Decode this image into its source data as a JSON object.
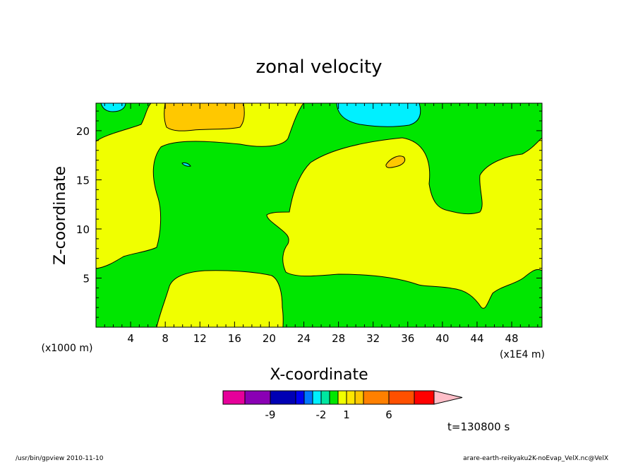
{
  "chart_data": {
    "type": "heatmap",
    "subtype": "filled-contour",
    "title": "zonal velocity",
    "xlabel": "X-coordinate",
    "ylabel": "Z-coordinate",
    "x_scale_note": "(x1E4 m)",
    "y_scale_note": "(x1000 m)",
    "xlim": [
      0,
      51.5
    ],
    "ylim": [
      0,
      22.8
    ],
    "x_ticks": [
      4,
      8,
      12,
      16,
      20,
      24,
      28,
      32,
      36,
      40,
      44,
      48
    ],
    "y_ticks": [
      5,
      10,
      15,
      20
    ],
    "regions": [
      {
        "level_color": "#00e600",
        "label": "background band"
      },
      {
        "level_color": "#f0ff00",
        "label": "upper-left positive region"
      },
      {
        "level_color": "#f0ff00",
        "label": "central positive region"
      },
      {
        "level_color": "#f0ff00",
        "label": "lower positive region"
      },
      {
        "level_color": "#ffc800",
        "label": "top positive maximum"
      },
      {
        "level_color": "#00f0ff",
        "label": "top negative minimum"
      },
      {
        "level_color": "#ffc800",
        "label": "small positive cell near x=34"
      }
    ],
    "colorbar": {
      "colors": [
        "#e6009a",
        "#8a00b4",
        "#0000b4",
        "#0000f0",
        "#0078ff",
        "#00f0ff",
        "#00e6a0",
        "#00e600",
        "#f0ff00",
        "#ffe600",
        "#ffc800",
        "#ff8000",
        "#ff5000",
        "#ff0000",
        "#ff7a7a",
        "#ffbec8"
      ],
      "tick_labels": [
        {
          "label": "-9",
          "index": 1
        },
        {
          "label": "-2",
          "index": 5
        },
        {
          "label": "1",
          "index": 8
        },
        {
          "label": "6",
          "index": 11
        }
      ]
    },
    "time_label": "t=130800 s"
  },
  "footer": {
    "left": "/usr/bin/gpview   2010-11-10",
    "right": "arare-earth-reikyaku2K-noEvap_VelX.nc@VelX"
  }
}
